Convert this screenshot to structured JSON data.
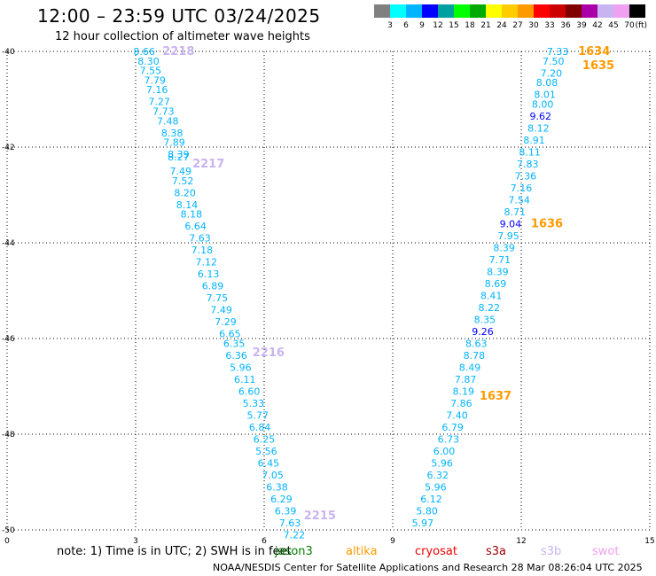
{
  "header": {
    "title": "12:00 – 23:59 UTC 03/24/2025",
    "subtitle": "12 hour collection of altimeter wave heights"
  },
  "footer": {
    "credit": "NOAA/NESDIS Center for Satellite Applications and Research   28 Mar 08:26:04 UTC 2025"
  },
  "note": {
    "text": "note:  1) Time is in UTC; 2) SWH is in feet",
    "satellites": [
      {
        "name": "jason3",
        "color": "#007f00"
      },
      {
        "name": "altika",
        "color": "#ff9900"
      },
      {
        "name": "cryosat",
        "color": "#ee0000"
      },
      {
        "name": "s3a",
        "color": "#990000"
      },
      {
        "name": "s3b",
        "color": "#c8b4f0"
      },
      {
        "name": "swot",
        "color": "#f0a0f0"
      }
    ]
  },
  "color_scale": {
    "labels": [
      "3",
      "6",
      "9",
      "12",
      "15",
      "18",
      "21",
      "24",
      "27",
      "30",
      "33",
      "36",
      "39",
      "42",
      "45",
      "70"
    ],
    "unit": "(ft)",
    "colors": [
      "#808080",
      "#00ffff",
      "#00b4ff",
      "#0000ff",
      "#00a0a0",
      "#00ff00",
      "#00aa00",
      "#ffff00",
      "#ffcc00",
      "#ff9900",
      "#ff0000",
      "#cc0000",
      "#800000",
      "#aa00aa",
      "#c8b4f0",
      "#f0a0f0",
      "#000000"
    ]
  },
  "chart_data": {
    "type": "scatter",
    "xlabel": "",
    "ylabel": "",
    "xlim": [
      0,
      15
    ],
    "ylim": [
      -50,
      -40
    ],
    "x_ticks": [
      "0",
      "3",
      "6",
      "9",
      "12",
      "15"
    ],
    "y_ticks": [
      "-40",
      "-42",
      "-44",
      "-46",
      "-48",
      "-50"
    ],
    "grid": true,
    "passes": [
      {
        "label": "2218",
        "x": 4.0,
        "y": -40.0,
        "color": "#c8b4f0"
      },
      {
        "label": "2217",
        "x": 4.7,
        "y": -42.35,
        "color": "#c8b4f0"
      },
      {
        "label": "2216",
        "x": 6.1,
        "y": -46.3,
        "color": "#c8b4f0"
      },
      {
        "label": "2215",
        "x": 7.3,
        "y": -49.7,
        "color": "#c8b4f0"
      },
      {
        "label": "1634",
        "x": 13.7,
        "y": -40.0,
        "color": "#ff9900"
      },
      {
        "label": "1635",
        "x": 13.8,
        "y": -40.3,
        "color": "#ff9900"
      },
      {
        "label": "1636",
        "x": 12.6,
        "y": -43.6,
        "color": "#ff9900"
      },
      {
        "label": "1637",
        "x": 11.4,
        "y": -47.2,
        "color": "#ff9900"
      }
    ],
    "series": [
      {
        "name": "2218/2217/2216/2215",
        "color": "#00b4ff",
        "points": [
          {
            "x": 3.2,
            "y": -40.0,
            "v": "8.66"
          },
          {
            "x": 3.3,
            "y": -40.2,
            "v": "8.30"
          },
          {
            "x": 3.35,
            "y": -40.4,
            "v": "7.55"
          },
          {
            "x": 3.45,
            "y": -40.6,
            "v": "7.79"
          },
          {
            "x": 3.5,
            "y": -40.8,
            "v": "7.16"
          },
          {
            "x": 3.55,
            "y": -41.05,
            "v": "7.27"
          },
          {
            "x": 3.65,
            "y": -41.25,
            "v": "7.73"
          },
          {
            "x": 3.75,
            "y": -41.45,
            "v": "7.48"
          },
          {
            "x": 3.85,
            "y": -41.7,
            "v": "8.38"
          },
          {
            "x": 3.9,
            "y": -41.9,
            "v": "7.89"
          },
          {
            "x": 4.0,
            "y": -42.15,
            "v": "8.39"
          },
          {
            "x": 4.0,
            "y": -42.2,
            "v": "8.27"
          },
          {
            "x": 4.05,
            "y": -42.5,
            "v": "7.49"
          },
          {
            "x": 4.1,
            "y": -42.7,
            "v": "7.52"
          },
          {
            "x": 4.15,
            "y": -42.95,
            "v": "8.20"
          },
          {
            "x": 4.2,
            "y": -43.2,
            "v": "8.14"
          },
          {
            "x": 4.3,
            "y": -43.4,
            "v": "8.18"
          },
          {
            "x": 4.4,
            "y": -43.65,
            "v": "6.64"
          },
          {
            "x": 4.5,
            "y": -43.9,
            "v": "7.63"
          },
          {
            "x": 4.55,
            "y": -44.15,
            "v": "7.18"
          },
          {
            "x": 4.65,
            "y": -44.4,
            "v": "7.12"
          },
          {
            "x": 4.7,
            "y": -44.65,
            "v": "6.13"
          },
          {
            "x": 4.8,
            "y": -44.9,
            "v": "6.89"
          },
          {
            "x": 4.9,
            "y": -45.15,
            "v": "7.75"
          },
          {
            "x": 5.0,
            "y": -45.4,
            "v": "7.49"
          },
          {
            "x": 5.1,
            "y": -45.65,
            "v": "7.29"
          },
          {
            "x": 5.2,
            "y": -45.9,
            "v": "6.65"
          },
          {
            "x": 5.3,
            "y": -46.1,
            "v": "6.35"
          },
          {
            "x": 5.35,
            "y": -46.35,
            "v": "6.36"
          },
          {
            "x": 5.45,
            "y": -46.6,
            "v": "5.96"
          },
          {
            "x": 5.55,
            "y": -46.85,
            "v": "6.11"
          },
          {
            "x": 5.65,
            "y": -47.1,
            "v": "6.60"
          },
          {
            "x": 5.75,
            "y": -47.35,
            "v": "5.33"
          },
          {
            "x": 5.85,
            "y": -47.6,
            "v": "5.77"
          },
          {
            "x": 5.9,
            "y": -47.85,
            "v": "6.84"
          },
          {
            "x": 6.0,
            "y": -48.1,
            "v": "6.25"
          },
          {
            "x": 6.05,
            "y": -48.35,
            "v": "5.56"
          },
          {
            "x": 6.1,
            "y": -48.6,
            "v": "6.45"
          },
          {
            "x": 6.2,
            "y": -48.85,
            "v": "7.05"
          },
          {
            "x": 6.3,
            "y": -49.1,
            "v": "6.38"
          },
          {
            "x": 6.4,
            "y": -49.35,
            "v": "6.29"
          },
          {
            "x": 6.5,
            "y": -49.6,
            "v": "6.39"
          },
          {
            "x": 6.6,
            "y": -49.85,
            "v": "7.63"
          },
          {
            "x": 6.7,
            "y": -50.1,
            "v": "7.22"
          }
        ]
      },
      {
        "name": "1634/1635/1636/1637",
        "color": "#00b4ff",
        "points": [
          {
            "x": 12.85,
            "y": -40.0,
            "v": "7.33"
          },
          {
            "x": 12.75,
            "y": -40.2,
            "v": "7.50"
          },
          {
            "x": 12.7,
            "y": -40.45,
            "v": "7.20"
          },
          {
            "x": 12.6,
            "y": -40.65,
            "v": "8.08"
          },
          {
            "x": 12.55,
            "y": -40.9,
            "v": "8.01"
          },
          {
            "x": 12.5,
            "y": -41.1,
            "v": "8.00"
          },
          {
            "x": 12.45,
            "y": -41.35,
            "v": "9.62",
            "color": "#0000ff"
          },
          {
            "x": 12.4,
            "y": -41.6,
            "v": "8.12"
          },
          {
            "x": 12.3,
            "y": -41.85,
            "v": "8.91"
          },
          {
            "x": 12.2,
            "y": -42.1,
            "v": "8.11"
          },
          {
            "x": 12.15,
            "y": -42.35,
            "v": "7.83"
          },
          {
            "x": 12.1,
            "y": -42.6,
            "v": "7.36"
          },
          {
            "x": 12.0,
            "y": -42.85,
            "v": "7.16"
          },
          {
            "x": 11.95,
            "y": -43.1,
            "v": "7.54"
          },
          {
            "x": 11.85,
            "y": -43.35,
            "v": "8.71"
          },
          {
            "x": 11.75,
            "y": -43.6,
            "v": "9.04",
            "color": "#0000ff"
          },
          {
            "x": 11.7,
            "y": -43.85,
            "v": "7.95"
          },
          {
            "x": 11.6,
            "y": -44.1,
            "v": "8.39"
          },
          {
            "x": 11.5,
            "y": -44.35,
            "v": "7.71"
          },
          {
            "x": 11.45,
            "y": -44.6,
            "v": "8.39"
          },
          {
            "x": 11.4,
            "y": -44.85,
            "v": "8.69"
          },
          {
            "x": 11.3,
            "y": -45.1,
            "v": "8.41"
          },
          {
            "x": 11.25,
            "y": -45.35,
            "v": "8.22"
          },
          {
            "x": 11.15,
            "y": -45.6,
            "v": "8.35"
          },
          {
            "x": 11.1,
            "y": -45.85,
            "v": "9.26",
            "color": "#0000ff"
          },
          {
            "x": 10.95,
            "y": -46.1,
            "v": "8.63"
          },
          {
            "x": 10.9,
            "y": -46.35,
            "v": "8.78"
          },
          {
            "x": 10.8,
            "y": -46.6,
            "v": "8.49"
          },
          {
            "x": 10.7,
            "y": -46.85,
            "v": "7.87"
          },
          {
            "x": 10.65,
            "y": -47.1,
            "v": "8.19"
          },
          {
            "x": 10.6,
            "y": -47.35,
            "v": "7.86"
          },
          {
            "x": 10.5,
            "y": -47.6,
            "v": "7.40"
          },
          {
            "x": 10.4,
            "y": -47.85,
            "v": "6.79"
          },
          {
            "x": 10.3,
            "y": -48.1,
            "v": "6.73"
          },
          {
            "x": 10.2,
            "y": -48.35,
            "v": "6.00"
          },
          {
            "x": 10.15,
            "y": -48.6,
            "v": "5.96"
          },
          {
            "x": 10.05,
            "y": -48.85,
            "v": "6.32"
          },
          {
            "x": 10.0,
            "y": -49.1,
            "v": "5.96"
          },
          {
            "x": 9.9,
            "y": -49.35,
            "v": "6.12"
          },
          {
            "x": 9.8,
            "y": -49.6,
            "v": "5.80"
          },
          {
            "x": 9.7,
            "y": -49.85,
            "v": "5.97"
          }
        ]
      }
    ]
  }
}
